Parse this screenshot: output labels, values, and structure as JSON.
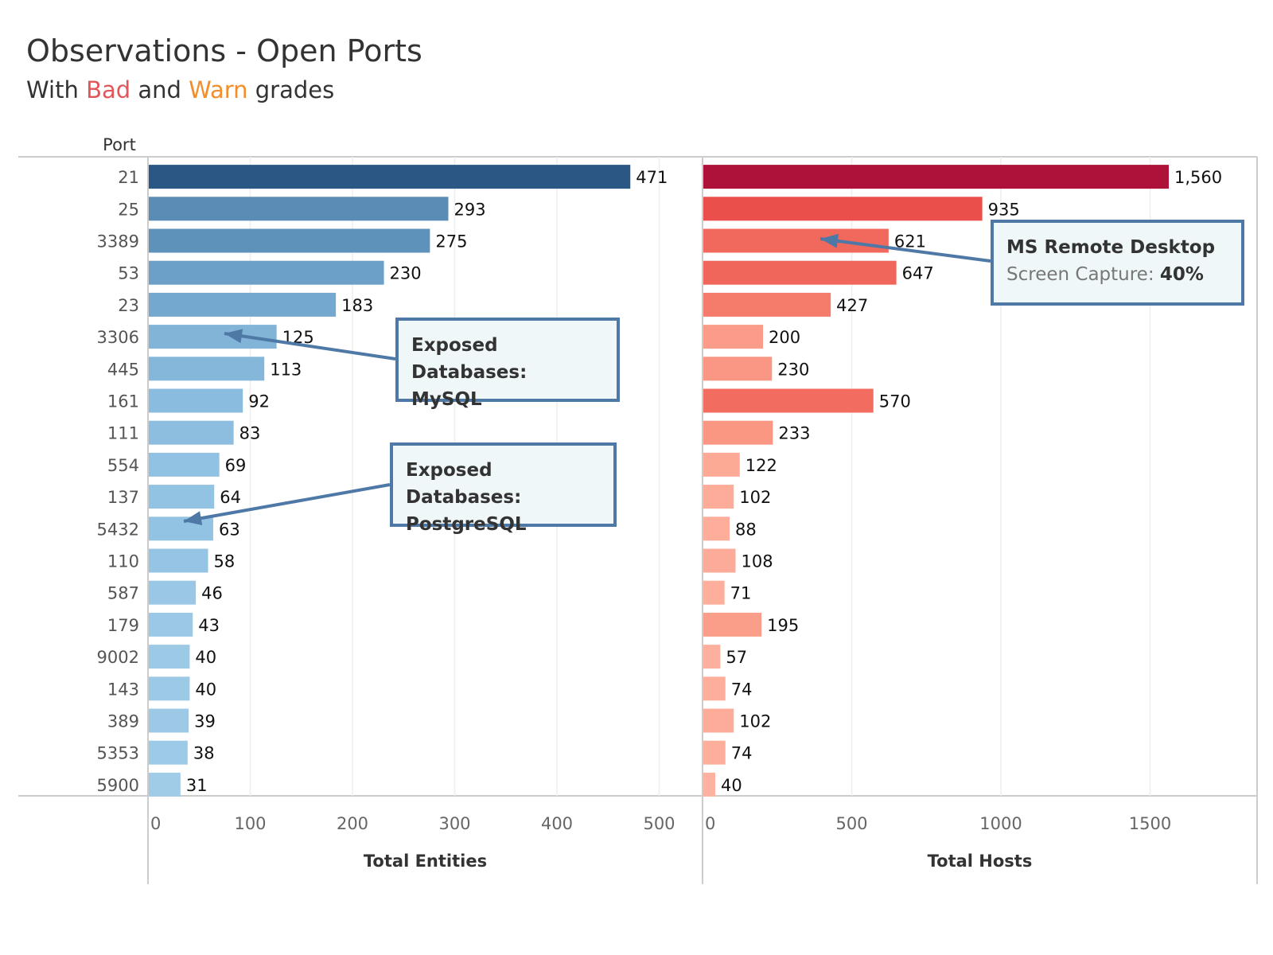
{
  "header": {
    "title": "Observations - Open Ports",
    "subtitle_prefix": "With ",
    "subtitle_bad": "Bad",
    "subtitle_and": " and ",
    "subtitle_warn": "Warn",
    "subtitle_suffix": " grades"
  },
  "colors": {
    "bad": "#e15759",
    "warn": "#f28e2b",
    "blue_scale": [
      "#b9ddf0",
      "#8fc0e2",
      "#6a9ec7",
      "#2a5783"
    ],
    "red_scale": [
      "#ffbcae",
      "#fcaa96",
      "#f57a68",
      "#ec504c",
      "#ae123a"
    ],
    "annotation_border": "#4e79a7",
    "annotation_fill": "#eff7f8"
  },
  "chart_data": [
    {
      "type": "bar",
      "orientation": "horizontal",
      "category_label": "Port",
      "categories": [
        "21",
        "25",
        "3389",
        "53",
        "23",
        "3306",
        "445",
        "161",
        "111",
        "554",
        "137",
        "5432",
        "110",
        "587",
        "179",
        "9002",
        "143",
        "389",
        "5353",
        "5900"
      ],
      "values": [
        471,
        293,
        275,
        230,
        183,
        125,
        113,
        92,
        83,
        69,
        64,
        63,
        58,
        46,
        43,
        40,
        40,
        39,
        38,
        31
      ],
      "data_labels": [
        "471",
        "293",
        "275",
        "230",
        "183",
        "125",
        "113",
        "92",
        "83",
        "69",
        "64",
        "63",
        "58",
        "46",
        "43",
        "40",
        "40",
        "39",
        "38",
        "31"
      ],
      "xlabel": "Total Entities",
      "xlim": [
        0,
        540
      ],
      "xticks": [
        0,
        100,
        200,
        300,
        400,
        500
      ],
      "grid": true
    },
    {
      "type": "bar",
      "orientation": "horizontal",
      "categories": [
        "21",
        "25",
        "3389",
        "53",
        "23",
        "3306",
        "445",
        "161",
        "111",
        "554",
        "137",
        "5432",
        "110",
        "587",
        "179",
        "9002",
        "143",
        "389",
        "5353",
        "5900"
      ],
      "values": [
        1560,
        935,
        621,
        647,
        427,
        200,
        230,
        570,
        233,
        122,
        102,
        88,
        108,
        71,
        195,
        57,
        74,
        102,
        74,
        40
      ],
      "data_labels": [
        "1,560",
        "935",
        "621",
        "647",
        "427",
        "200",
        "230",
        "570",
        "233",
        "122",
        "102",
        "88",
        "108",
        "71",
        "195",
        "57",
        "74",
        "102",
        "74",
        "40"
      ],
      "xlabel": "Total Hosts",
      "xlim": [
        0,
        1850
      ],
      "xticks": [
        0,
        500,
        1000,
        1500
      ],
      "grid": true
    }
  ],
  "annotations": {
    "mysql": {
      "line1": "Exposed Databases:",
      "line2": "MySQL",
      "port": "3306"
    },
    "postgres": {
      "line1": "Exposed Databases:",
      "line2": "PostgreSQL",
      "port": "5432"
    },
    "rdp": {
      "line1": "MS Remote Desktop",
      "line2_label": "Screen Capture: ",
      "line2_value": "40%",
      "port": "3389"
    }
  }
}
